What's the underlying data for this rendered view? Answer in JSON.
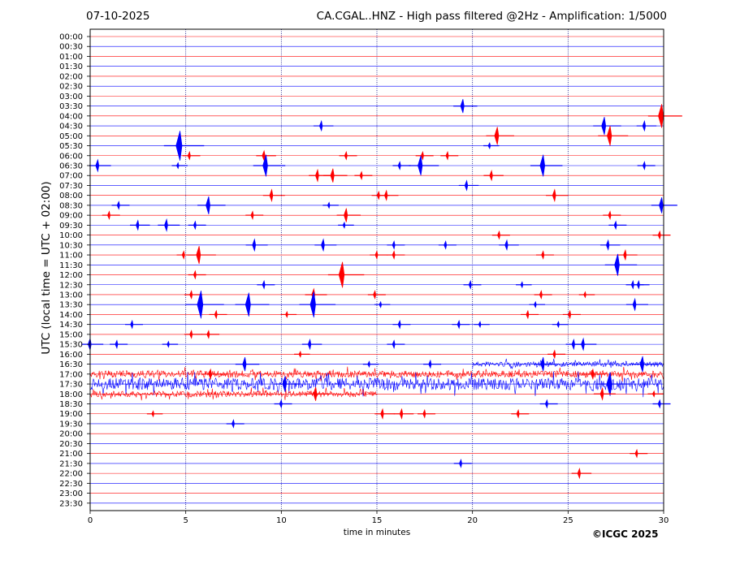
{
  "header": {
    "date": "07-10-2025",
    "title": "CA.CGAL..HNZ - High pass filtered @2Hz - Amplification: 1/5000"
  },
  "footer": {
    "copyright": "©ICGC 2025"
  },
  "chart_data": {
    "type": "seismogram",
    "xlabel": "time in minutes",
    "ylabel": "UTC (local time = UTC + 02:00)",
    "xlim": [
      0,
      30
    ],
    "xticks": [
      0,
      5,
      10,
      15,
      20,
      25,
      30
    ],
    "grid": "vertical dotted at x ticks",
    "colors": {
      "even": "#ff0000",
      "odd": "#0000ff",
      "grid": "#000080"
    },
    "rows": [
      "00:00",
      "00:30",
      "01:00",
      "01:30",
      "02:00",
      "02:30",
      "03:00",
      "03:30",
      "04:00",
      "04:30",
      "05:00",
      "05:30",
      "06:00",
      "06:30",
      "07:00",
      "07:30",
      "08:00",
      "08:30",
      "09:00",
      "09:30",
      "10:00",
      "10:30",
      "11:00",
      "11:30",
      "12:00",
      "12:30",
      "13:00",
      "13:30",
      "14:00",
      "14:30",
      "15:00",
      "15:30",
      "16:00",
      "16:30",
      "17:00",
      "17:30",
      "18:00",
      "18:30",
      "19:00",
      "19:30",
      "20:00",
      "20:30",
      "21:00",
      "21:30",
      "22:00",
      "22:30",
      "23:00",
      "23:30"
    ],
    "noisy_rows": [
      {
        "row": "16:30",
        "from": 20,
        "to": 30,
        "level": 0.25
      },
      {
        "row": "17:00",
        "from": 0,
        "to": 30,
        "level": 0.35
      },
      {
        "row": "17:30",
        "from": 0,
        "to": 30,
        "level": 0.6
      },
      {
        "row": "18:00",
        "from": 0,
        "to": 15,
        "level": 0.3
      }
    ],
    "events": [
      {
        "row": "03:30",
        "t": 19.5,
        "amp": 0.7
      },
      {
        "row": "04:00",
        "t": 29.9,
        "amp": 1.2
      },
      {
        "row": "04:30",
        "t": 12.1,
        "amp": 0.5
      },
      {
        "row": "04:30",
        "t": 26.9,
        "amp": 0.9
      },
      {
        "row": "04:30",
        "t": 29.0,
        "amp": 0.5
      },
      {
        "row": "05:00",
        "t": 21.3,
        "amp": 0.9
      },
      {
        "row": "05:00",
        "t": 27.2,
        "amp": 1.0
      },
      {
        "row": "05:30",
        "t": 4.7,
        "amp": 1.5
      },
      {
        "row": "05:30",
        "t": 20.9,
        "amp": 0.3
      },
      {
        "row": "06:00",
        "t": 5.2,
        "amp": 0.4
      },
      {
        "row": "06:00",
        "t": 9.1,
        "amp": 0.5
      },
      {
        "row": "06:00",
        "t": 13.4,
        "amp": 0.4
      },
      {
        "row": "06:00",
        "t": 17.4,
        "amp": 0.4
      },
      {
        "row": "06:00",
        "t": 18.7,
        "amp": 0.4
      },
      {
        "row": "06:30",
        "t": 0.4,
        "amp": 0.6
      },
      {
        "row": "06:30",
        "t": 4.6,
        "amp": 0.3
      },
      {
        "row": "06:30",
        "t": 9.2,
        "amp": 1.1
      },
      {
        "row": "06:30",
        "t": 16.2,
        "amp": 0.4
      },
      {
        "row": "06:30",
        "t": 17.3,
        "amp": 1.0
      },
      {
        "row": "06:30",
        "t": 23.7,
        "amp": 1.1
      },
      {
        "row": "06:30",
        "t": 29.0,
        "amp": 0.4
      },
      {
        "row": "07:00",
        "t": 11.9,
        "amp": 0.6
      },
      {
        "row": "07:00",
        "t": 12.7,
        "amp": 0.7
      },
      {
        "row": "07:00",
        "t": 14.2,
        "amp": 0.4
      },
      {
        "row": "07:00",
        "t": 21.0,
        "amp": 0.5
      },
      {
        "row": "07:30",
        "t": 19.7,
        "amp": 0.5
      },
      {
        "row": "08:00",
        "t": 9.5,
        "amp": 0.6
      },
      {
        "row": "08:00",
        "t": 15.1,
        "amp": 0.4
      },
      {
        "row": "08:00",
        "t": 15.5,
        "amp": 0.5
      },
      {
        "row": "08:00",
        "t": 24.3,
        "amp": 0.6
      },
      {
        "row": "08:30",
        "t": 1.5,
        "amp": 0.4
      },
      {
        "row": "08:30",
        "t": 6.2,
        "amp": 0.9
      },
      {
        "row": "08:30",
        "t": 12.5,
        "amp": 0.3
      },
      {
        "row": "08:30",
        "t": 29.9,
        "amp": 0.8
      },
      {
        "row": "09:00",
        "t": 1.0,
        "amp": 0.4
      },
      {
        "row": "09:00",
        "t": 8.5,
        "amp": 0.4
      },
      {
        "row": "09:00",
        "t": 13.4,
        "amp": 0.7
      },
      {
        "row": "09:00",
        "t": 27.2,
        "amp": 0.4
      },
      {
        "row": "09:30",
        "t": 2.5,
        "amp": 0.5
      },
      {
        "row": "09:30",
        "t": 4.0,
        "amp": 0.6
      },
      {
        "row": "09:30",
        "t": 5.5,
        "amp": 0.4
      },
      {
        "row": "09:30",
        "t": 13.3,
        "amp": 0.3
      },
      {
        "row": "09:30",
        "t": 27.5,
        "amp": 0.4
      },
      {
        "row": "10:00",
        "t": 21.4,
        "amp": 0.4
      },
      {
        "row": "10:00",
        "t": 29.8,
        "amp": 0.4
      },
      {
        "row": "10:30",
        "t": 8.6,
        "amp": 0.6
      },
      {
        "row": "10:30",
        "t": 12.2,
        "amp": 0.6
      },
      {
        "row": "10:30",
        "t": 15.9,
        "amp": 0.4
      },
      {
        "row": "10:30",
        "t": 18.6,
        "amp": 0.4
      },
      {
        "row": "10:30",
        "t": 21.8,
        "amp": 0.5
      },
      {
        "row": "10:30",
        "t": 27.1,
        "amp": 0.5
      },
      {
        "row": "11:00",
        "t": 4.9,
        "amp": 0.4
      },
      {
        "row": "11:00",
        "t": 5.7,
        "amp": 0.9
      },
      {
        "row": "11:00",
        "t": 15.0,
        "amp": 0.4
      },
      {
        "row": "11:00",
        "t": 15.9,
        "amp": 0.4
      },
      {
        "row": "11:00",
        "t": 23.7,
        "amp": 0.4
      },
      {
        "row": "11:00",
        "t": 28.0,
        "amp": 0.5
      },
      {
        "row": "11:30",
        "t": 27.6,
        "amp": 1.1
      },
      {
        "row": "12:00",
        "t": 5.5,
        "amp": 0.4
      },
      {
        "row": "12:00",
        "t": 13.2,
        "amp": 1.3
      },
      {
        "row": "12:30",
        "t": 9.1,
        "amp": 0.4
      },
      {
        "row": "12:30",
        "t": 19.9,
        "amp": 0.4
      },
      {
        "row": "12:30",
        "t": 22.6,
        "amp": 0.3
      },
      {
        "row": "12:30",
        "t": 28.4,
        "amp": 0.4
      },
      {
        "row": "12:30",
        "t": 28.7,
        "amp": 0.4
      },
      {
        "row": "13:00",
        "t": 5.3,
        "amp": 0.4
      },
      {
        "row": "13:00",
        "t": 11.7,
        "amp": 0.6
      },
      {
        "row": "13:00",
        "t": 14.9,
        "amp": 0.4
      },
      {
        "row": "13:00",
        "t": 23.6,
        "amp": 0.4
      },
      {
        "row": "13:00",
        "t": 25.9,
        "amp": 0.3
      },
      {
        "row": "13:30",
        "t": 5.8,
        "amp": 1.4
      },
      {
        "row": "13:30",
        "t": 8.3,
        "amp": 1.2
      },
      {
        "row": "13:30",
        "t": 11.7,
        "amp": 1.3
      },
      {
        "row": "13:30",
        "t": 15.2,
        "amp": 0.3
      },
      {
        "row": "13:30",
        "t": 23.3,
        "amp": 0.3
      },
      {
        "row": "13:30",
        "t": 28.5,
        "amp": 0.6
      },
      {
        "row": "14:00",
        "t": 6.6,
        "amp": 0.4
      },
      {
        "row": "14:00",
        "t": 10.3,
        "amp": 0.3
      },
      {
        "row": "14:00",
        "t": 22.9,
        "amp": 0.4
      },
      {
        "row": "14:00",
        "t": 25.1,
        "amp": 0.4
      },
      {
        "row": "14:30",
        "t": 2.2,
        "amp": 0.4
      },
      {
        "row": "14:30",
        "t": 16.2,
        "amp": 0.4
      },
      {
        "row": "14:30",
        "t": 19.3,
        "amp": 0.4
      },
      {
        "row": "14:30",
        "t": 20.4,
        "amp": 0.3
      },
      {
        "row": "14:30",
        "t": 24.5,
        "amp": 0.3
      },
      {
        "row": "15:00",
        "t": 5.3,
        "amp": 0.4
      },
      {
        "row": "15:00",
        "t": 6.2,
        "amp": 0.4
      },
      {
        "row": "15:30",
        "t": 0.0,
        "amp": 0.6
      },
      {
        "row": "15:30",
        "t": 1.4,
        "amp": 0.4
      },
      {
        "row": "15:30",
        "t": 4.1,
        "amp": 0.3
      },
      {
        "row": "15:30",
        "t": 11.5,
        "amp": 0.5
      },
      {
        "row": "15:30",
        "t": 15.9,
        "amp": 0.4
      },
      {
        "row": "15:30",
        "t": 25.3,
        "amp": 0.5
      },
      {
        "row": "15:30",
        "t": 25.8,
        "amp": 0.6
      },
      {
        "row": "16:00",
        "t": 11.0,
        "amp": 0.3
      },
      {
        "row": "16:00",
        "t": 24.3,
        "amp": 0.4
      },
      {
        "row": "16:30",
        "t": 8.1,
        "amp": 0.7
      },
      {
        "row": "16:30",
        "t": 14.6,
        "amp": 0.3
      },
      {
        "row": "16:30",
        "t": 17.8,
        "amp": 0.4
      },
      {
        "row": "16:30",
        "t": 23.7,
        "amp": 0.7
      },
      {
        "row": "16:30",
        "t": 28.9,
        "amp": 0.8
      },
      {
        "row": "17:00",
        "t": 6.3,
        "amp": 0.5
      },
      {
        "row": "17:00",
        "t": 26.3,
        "amp": 0.5
      },
      {
        "row": "17:30",
        "t": 27.2,
        "amp": 1.2
      },
      {
        "row": "17:30",
        "t": 10.2,
        "amp": 0.8
      },
      {
        "row": "18:00",
        "t": 11.8,
        "amp": 0.7
      },
      {
        "row": "18:00",
        "t": 26.8,
        "amp": 0.6
      },
      {
        "row": "18:00",
        "t": 29.5,
        "amp": 0.3
      },
      {
        "row": "18:30",
        "t": 10.0,
        "amp": 0.4
      },
      {
        "row": "18:30",
        "t": 23.9,
        "amp": 0.4
      },
      {
        "row": "18:30",
        "t": 29.8,
        "amp": 0.4
      },
      {
        "row": "19:00",
        "t": 3.3,
        "amp": 0.3
      },
      {
        "row": "19:00",
        "t": 15.3,
        "amp": 0.5
      },
      {
        "row": "19:00",
        "t": 16.3,
        "amp": 0.5
      },
      {
        "row": "19:00",
        "t": 17.5,
        "amp": 0.4
      },
      {
        "row": "19:00",
        "t": 22.4,
        "amp": 0.4
      },
      {
        "row": "19:30",
        "t": 7.5,
        "amp": 0.4
      },
      {
        "row": "21:00",
        "t": 28.6,
        "amp": 0.4
      },
      {
        "row": "21:30",
        "t": 19.4,
        "amp": 0.4
      },
      {
        "row": "22:00",
        "t": 25.6,
        "amp": 0.5
      }
    ]
  }
}
